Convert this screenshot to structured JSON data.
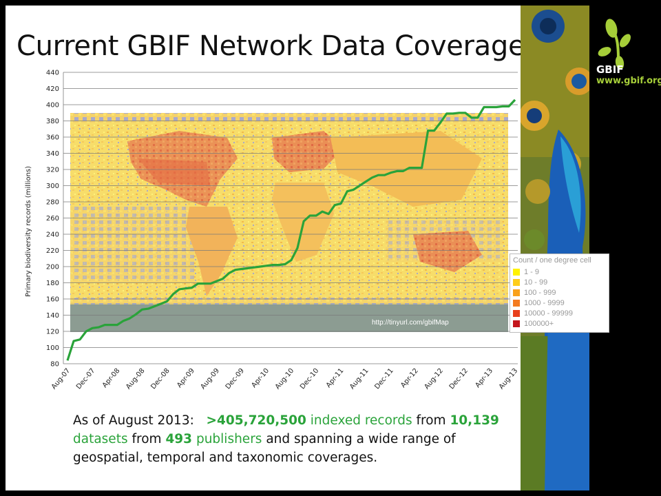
{
  "slide": {
    "title": "Current GBIF Network Data Coverage"
  },
  "logo": {
    "name": "GBIF",
    "url": "www.gbif.org",
    "colors": {
      "green": "#a6ce39",
      "white": "#ffffff"
    }
  },
  "map": {
    "url_label": "http://tinyurl.com/gbifMap",
    "legend": {
      "title": "Count / one degree cell",
      "items": [
        {
          "label": "1 - 9",
          "color": "#fff200"
        },
        {
          "label": "10 - 99",
          "color": "#fecd1a"
        },
        {
          "label": "100 - 999",
          "color": "#f9a11b"
        },
        {
          "label": "1000 - 9999",
          "color": "#f47b20"
        },
        {
          "label": "10000 - 99999",
          "color": "#e8401c"
        },
        {
          "label": "100000+",
          "color": "#c4161c"
        }
      ]
    }
  },
  "summary": {
    "prefix": "As of August 2013:",
    "records": ">405,720,500",
    "records_label": "indexed records",
    "from1": "from",
    "datasets": "10,139",
    "datasets_label": "datasets",
    "from2": "from",
    "publishers": "493",
    "publishers_label": "publishers",
    "rest": "and spanning a wide range of geospatial, temporal and taxonomic coverages."
  },
  "chart_data": {
    "type": "line",
    "title": "Current GBIF Network Data Coverage",
    "xlabel": "",
    "ylabel": "Primary biodiversity records (millions)",
    "ylim": [
      80,
      440
    ],
    "yticks": [
      80,
      100,
      120,
      140,
      160,
      180,
      200,
      220,
      240,
      260,
      280,
      300,
      320,
      340,
      360,
      380,
      400,
      420,
      440
    ],
    "xticks": [
      "Aug-07",
      "Dec-07",
      "Apr-08",
      "Aug-08",
      "Dec-08",
      "Apr-09",
      "Aug-09",
      "Dec-09",
      "Apr-10",
      "Aug-10",
      "Dec-10",
      "Apr-11",
      "Aug-11",
      "Dec-11",
      "Apr-12",
      "Aug-12",
      "Dec-12",
      "Apr-13",
      "Aug-13"
    ],
    "grid": true,
    "line_color": "#2aa33a",
    "series": [
      {
        "name": "",
        "months": [
          "Aug-07",
          "Sep-07",
          "Oct-07",
          "Nov-07",
          "Dec-07",
          "Jan-08",
          "Feb-08",
          "Mar-08",
          "Apr-08",
          "May-08",
          "Jun-08",
          "Jul-08",
          "Aug-08",
          "Sep-08",
          "Oct-08",
          "Nov-08",
          "Dec-08",
          "Jan-09",
          "Feb-09",
          "Mar-09",
          "Apr-09",
          "May-09",
          "Jun-09",
          "Jul-09",
          "Aug-09",
          "Sep-09",
          "Oct-09",
          "Nov-09",
          "Dec-09",
          "Jan-10",
          "Feb-10",
          "Mar-10",
          "Apr-10",
          "May-10",
          "Jun-10",
          "Jul-10",
          "Aug-10",
          "Sep-10",
          "Oct-10",
          "Nov-10",
          "Dec-10",
          "Jan-11",
          "Feb-11",
          "Mar-11",
          "Apr-11",
          "May-11",
          "Jun-11",
          "Jul-11",
          "Aug-11",
          "Sep-11",
          "Oct-11",
          "Nov-11",
          "Dec-11",
          "Jan-12",
          "Feb-12",
          "Mar-12",
          "Apr-12",
          "May-12",
          "Jun-12",
          "Jul-12",
          "Aug-12",
          "Sep-12",
          "Oct-12",
          "Nov-12",
          "Dec-12",
          "Jan-13",
          "Feb-13",
          "Mar-13",
          "Apr-13",
          "May-13",
          "Jun-13",
          "Jul-13",
          "Aug-13"
        ],
        "values": [
          84,
          108,
          110,
          120,
          124,
          125,
          128,
          128,
          128,
          133,
          136,
          141,
          147,
          148,
          151,
          154,
          157,
          166,
          172,
          173,
          174,
          179,
          179,
          179,
          182,
          185,
          192,
          196,
          197,
          198,
          199,
          200,
          201,
          202,
          202,
          203,
          208,
          223,
          256,
          263,
          263,
          268,
          265,
          276,
          278,
          293,
          295,
          300,
          305,
          310,
          313,
          313,
          316,
          318,
          318,
          322,
          322,
          322,
          368,
          368,
          378,
          389,
          389,
          390,
          390,
          384,
          384,
          397,
          397,
          397,
          398,
          398,
          406
        ]
      }
    ]
  }
}
